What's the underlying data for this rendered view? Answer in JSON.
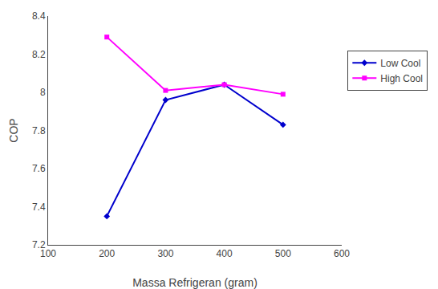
{
  "chart_data": {
    "type": "line",
    "xlabel": "Massa Refrigeran (gram)",
    "ylabel": "COP",
    "x": [
      200,
      300,
      400,
      500
    ],
    "series": [
      {
        "name": "Low Cool",
        "color": "#0000CD",
        "marker": "diamond",
        "values": [
          7.35,
          7.96,
          8.04,
          7.83
        ]
      },
      {
        "name": "High Cool",
        "color": "#FF00FF",
        "marker": "square",
        "values": [
          8.29,
          8.01,
          8.04,
          7.99
        ]
      }
    ],
    "xlim": [
      100,
      600
    ],
    "xticks": [
      100,
      200,
      300,
      400,
      500,
      600
    ],
    "ylim": [
      7.2,
      8.4
    ],
    "yticks": [
      7.2,
      7.4,
      7.6,
      7.8,
      8,
      8.2,
      8.4
    ],
    "grid": false,
    "legend": "right"
  }
}
